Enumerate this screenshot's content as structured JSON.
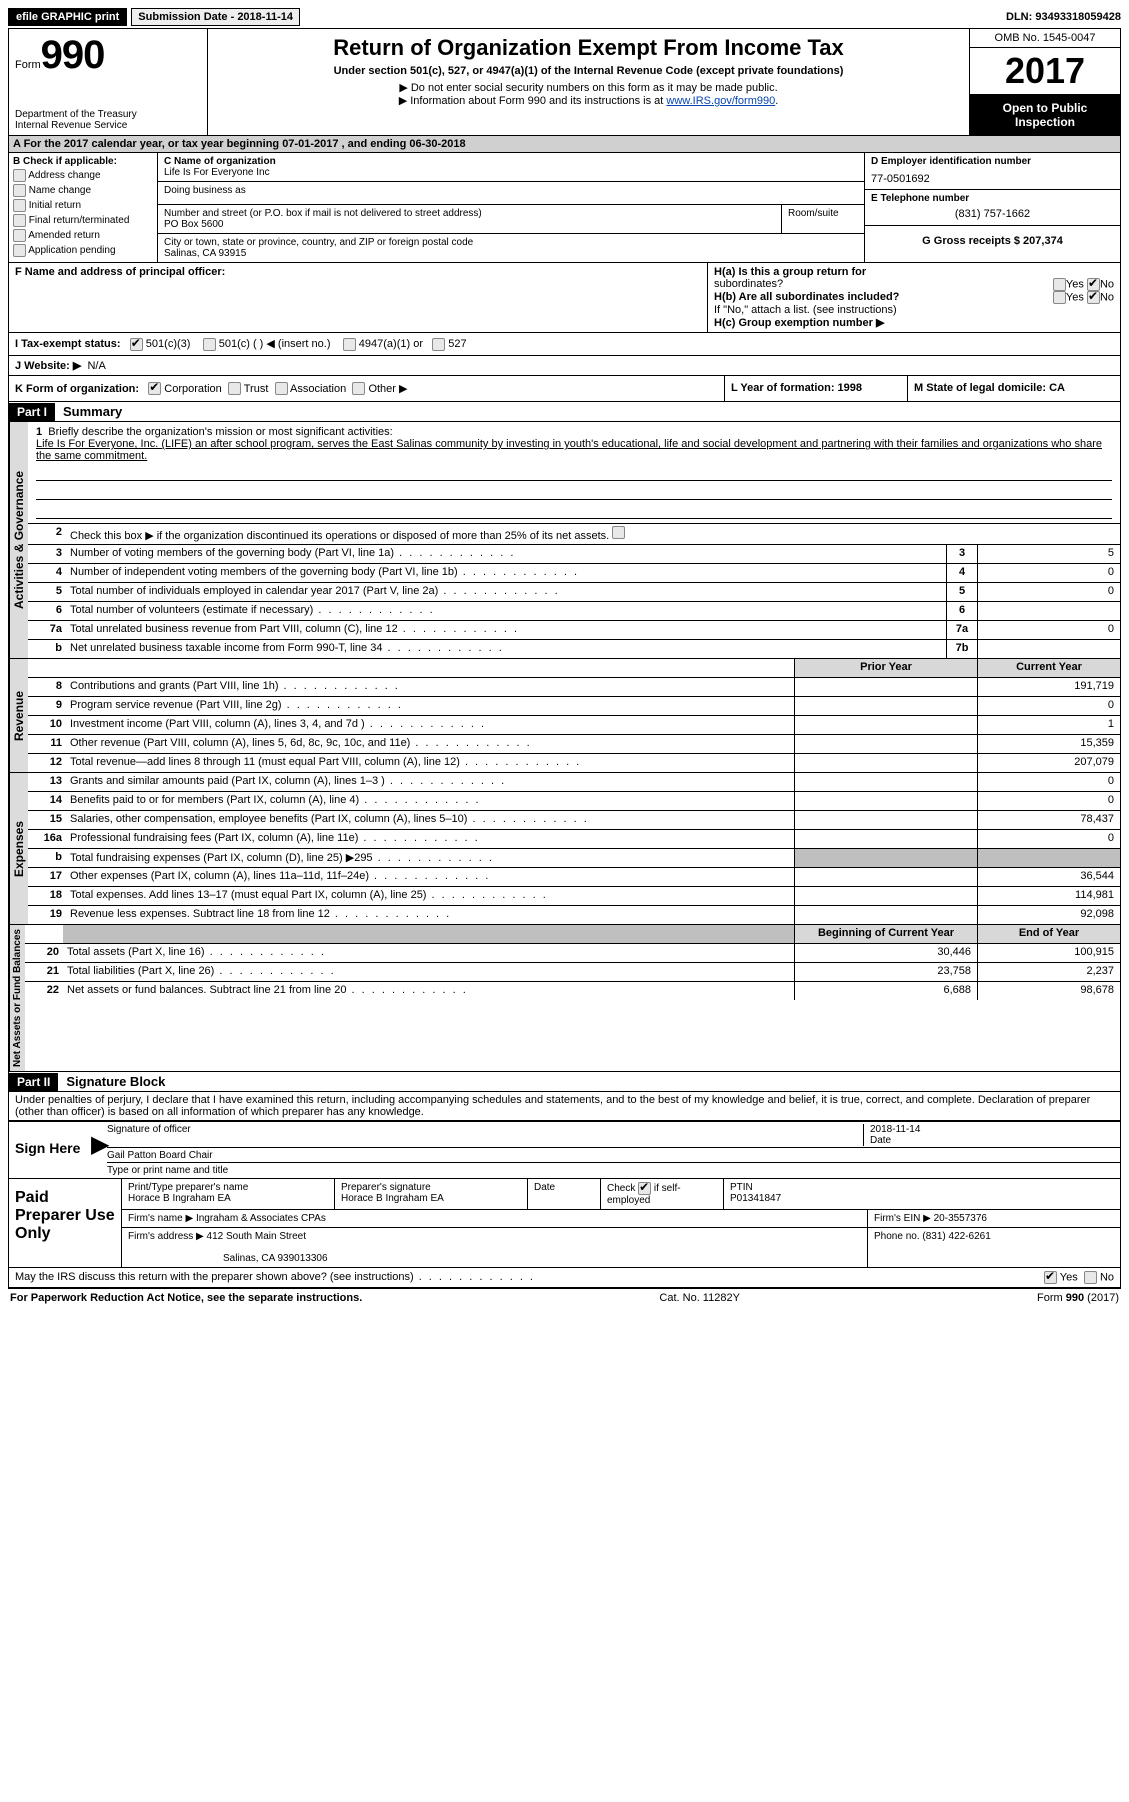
{
  "topbar": {
    "efile": "efile GRAPHIC print",
    "submission_label": "Submission Date - 2018-11-14",
    "dln": "DLN: 93493318059428"
  },
  "header": {
    "form_prefix": "Form",
    "form_number": "990",
    "dept1": "Department of the Treasury",
    "dept2": "Internal Revenue Service",
    "title": "Return of Organization Exempt From Income Tax",
    "subtitle": "Under section 501(c), 527, or 4947(a)(1) of the Internal Revenue Code (except private foundations)",
    "bullet1": "▶ Do not enter social security numbers on this form as it may be made public.",
    "bullet2_pre": "▶ Information about Form 990 and its instructions is at ",
    "bullet2_link": "www.IRS.gov/form990",
    "omb": "OMB No. 1545-0047",
    "year": "2017",
    "open": "Open to Public Inspection"
  },
  "section_a": "A  For the 2017 calendar year, or tax year beginning 07-01-2017   , and ending 06-30-2018",
  "b": {
    "header": "B Check if applicable:",
    "items": [
      "Address change",
      "Name change",
      "Initial return",
      "Final return/terminated",
      "Amended return",
      "Application pending"
    ]
  },
  "c": {
    "name_label": "C Name of organization",
    "name": "Life Is For Everyone Inc",
    "dba_label": "Doing business as",
    "addr_label": "Number and street (or P.O. box if mail is not delivered to street address)",
    "room_label": "Room/suite",
    "addr": "PO Box 5600",
    "city_label": "City or town, state or province, country, and ZIP or foreign postal code",
    "city": "Salinas, CA  93915"
  },
  "d": {
    "ein_label": "D Employer identification number",
    "ein": "77-0501692",
    "phone_label": "E Telephone number",
    "phone": "(831) 757-1662",
    "gross_label": "G Gross receipts $ 207,374"
  },
  "f": {
    "label": "F Name and address of principal officer:"
  },
  "h": {
    "a": "H(a)  Is this a group return for",
    "a2": "subordinates?",
    "b": "H(b) Are all subordinates included?",
    "b2": "If \"No,\" attach a list. (see instructions)",
    "c": "H(c) Group exemption number ▶",
    "yes": "Yes",
    "no": "No"
  },
  "i": {
    "label": "I  Tax-exempt status:",
    "opt1": "501(c)(3)",
    "opt2": "501(c) (  ) ◀ (insert no.)",
    "opt3": "4947(a)(1) or",
    "opt4": "527"
  },
  "j": {
    "label": "J  Website: ▶",
    "value": "N/A"
  },
  "k": {
    "label": "K Form of organization:",
    "corp": "Corporation",
    "trust": "Trust",
    "assoc": "Association",
    "other": "Other ▶",
    "l": "L Year of formation: 1998",
    "m": "M State of legal domicile: CA"
  },
  "part1": {
    "header": "Part I",
    "title": "Summary",
    "q1": "Briefly describe the organization's mission or most significant activities:",
    "mission": "Life Is For Everyone, Inc. (LIFE) an after school program, serves the East Salinas community by investing in youth's educational, life and social development and partnering with their families and organizations who share the same commitment.",
    "q2": "Check this box ▶          if the organization discontinued its operations or disposed of more than 25% of its net assets."
  },
  "gov_lines": [
    {
      "n": "3",
      "d": "Number of voting members of the governing body (Part VI, line 1a)",
      "box": "3",
      "v": "5"
    },
    {
      "n": "4",
      "d": "Number of independent voting members of the governing body (Part VI, line 1b)",
      "box": "4",
      "v": "0"
    },
    {
      "n": "5",
      "d": "Total number of individuals employed in calendar year 2017 (Part V, line 2a)",
      "box": "5",
      "v": "0"
    },
    {
      "n": "6",
      "d": "Total number of volunteers (estimate if necessary)",
      "box": "6",
      "v": ""
    },
    {
      "n": "7a",
      "d": "Total unrelated business revenue from Part VIII, column (C), line 12",
      "box": "7a",
      "v": "0"
    },
    {
      "n": "b",
      "d": "Net unrelated business taxable income from Form 990-T, line 34",
      "box": "7b",
      "v": ""
    }
  ],
  "col_headers": {
    "prior": "Prior Year",
    "current": "Current Year"
  },
  "rev_lines": [
    {
      "n": "8",
      "d": "Contributions and grants (Part VIII, line 1h)",
      "p": "",
      "c": "191,719"
    },
    {
      "n": "9",
      "d": "Program service revenue (Part VIII, line 2g)",
      "p": "",
      "c": "0"
    },
    {
      "n": "10",
      "d": "Investment income (Part VIII, column (A), lines 3, 4, and 7d )",
      "p": "",
      "c": "1"
    },
    {
      "n": "11",
      "d": "Other revenue (Part VIII, column (A), lines 5, 6d, 8c, 9c, 10c, and 11e)",
      "p": "",
      "c": "15,359"
    },
    {
      "n": "12",
      "d": "Total revenue—add lines 8 through 11 (must equal Part VIII, column (A), line 12)",
      "p": "",
      "c": "207,079"
    }
  ],
  "exp_lines": [
    {
      "n": "13",
      "d": "Grants and similar amounts paid (Part IX, column (A), lines 1–3 )",
      "p": "",
      "c": "0"
    },
    {
      "n": "14",
      "d": "Benefits paid to or for members (Part IX, column (A), line 4)",
      "p": "",
      "c": "0"
    },
    {
      "n": "15",
      "d": "Salaries, other compensation, employee benefits (Part IX, column (A), lines 5–10)",
      "p": "",
      "c": "78,437"
    },
    {
      "n": "16a",
      "d": "Professional fundraising fees (Part IX, column (A), line 11e)",
      "p": "",
      "c": "0"
    },
    {
      "n": "b",
      "d": "Total fundraising expenses (Part IX, column (D), line 25) ▶295",
      "p": "grey",
      "c": "grey"
    },
    {
      "n": "17",
      "d": "Other expenses (Part IX, column (A), lines 11a–11d, 11f–24e)",
      "p": "",
      "c": "36,544"
    },
    {
      "n": "18",
      "d": "Total expenses. Add lines 13–17 (must equal Part IX, column (A), line 25)",
      "p": "",
      "c": "114,981"
    },
    {
      "n": "19",
      "d": "Revenue less expenses. Subtract line 18 from line 12",
      "p": "",
      "c": "92,098"
    }
  ],
  "na_headers": {
    "begin": "Beginning of Current Year",
    "end": "End of Year"
  },
  "na_lines": [
    {
      "n": "20",
      "d": "Total assets (Part X, line 16)",
      "p": "30,446",
      "c": "100,915"
    },
    {
      "n": "21",
      "d": "Total liabilities (Part X, line 26)",
      "p": "23,758",
      "c": "2,237"
    },
    {
      "n": "22",
      "d": "Net assets or fund balances. Subtract line 21 from line 20",
      "p": "6,688",
      "c": "98,678"
    }
  ],
  "vtabs": {
    "gov": "Activities & Governance",
    "rev": "Revenue",
    "exp": "Expenses",
    "na": "Net Assets or Fund Balances"
  },
  "part2": {
    "header": "Part II",
    "title": "Signature Block",
    "penalty": "Under penalties of perjury, I declare that I have examined this return, including accompanying schedules and statements, and to the best of my knowledge and belief, it is true, correct, and complete. Declaration of preparer (other than officer) is based on all information of which preparer has any knowledge.",
    "sign_here": "Sign Here",
    "sig_officer": "Signature of officer",
    "date": "Date",
    "sig_date": "2018-11-14",
    "officer_name": "Gail Patton Board Chair",
    "type_name": "Type or print name and title"
  },
  "prep": {
    "label": "Paid Preparer Use Only",
    "name_label": "Print/Type preparer's name",
    "name": "Horace B Ingraham EA",
    "sig_label": "Preparer's signature",
    "sig": "Horace B Ingraham EA",
    "date_label": "Date",
    "check_label": "Check         if self-employed",
    "ptin_label": "PTIN",
    "ptin": "P01341847",
    "firm_label": "Firm's name    ▶",
    "firm": "Ingraham & Associates CPAs",
    "firm_ein_label": "Firm's EIN ▶",
    "firm_ein": "20-3557376",
    "addr_label": "Firm's address ▶",
    "addr": "412 South Main Street",
    "addr2": "Salinas, CA  939013306",
    "phone_label": "Phone no.",
    "phone": "(831) 422-6261"
  },
  "discuss": {
    "q": "May the IRS discuss this return with the preparer shown above? (see instructions)",
    "yes": "Yes",
    "no": "No"
  },
  "footer": {
    "left": "For Paperwork Reduction Act Notice, see the separate instructions.",
    "mid": "Cat. No. 11282Y",
    "right_pre": "Form ",
    "right_bold": "990",
    "right_post": " (2017)"
  }
}
